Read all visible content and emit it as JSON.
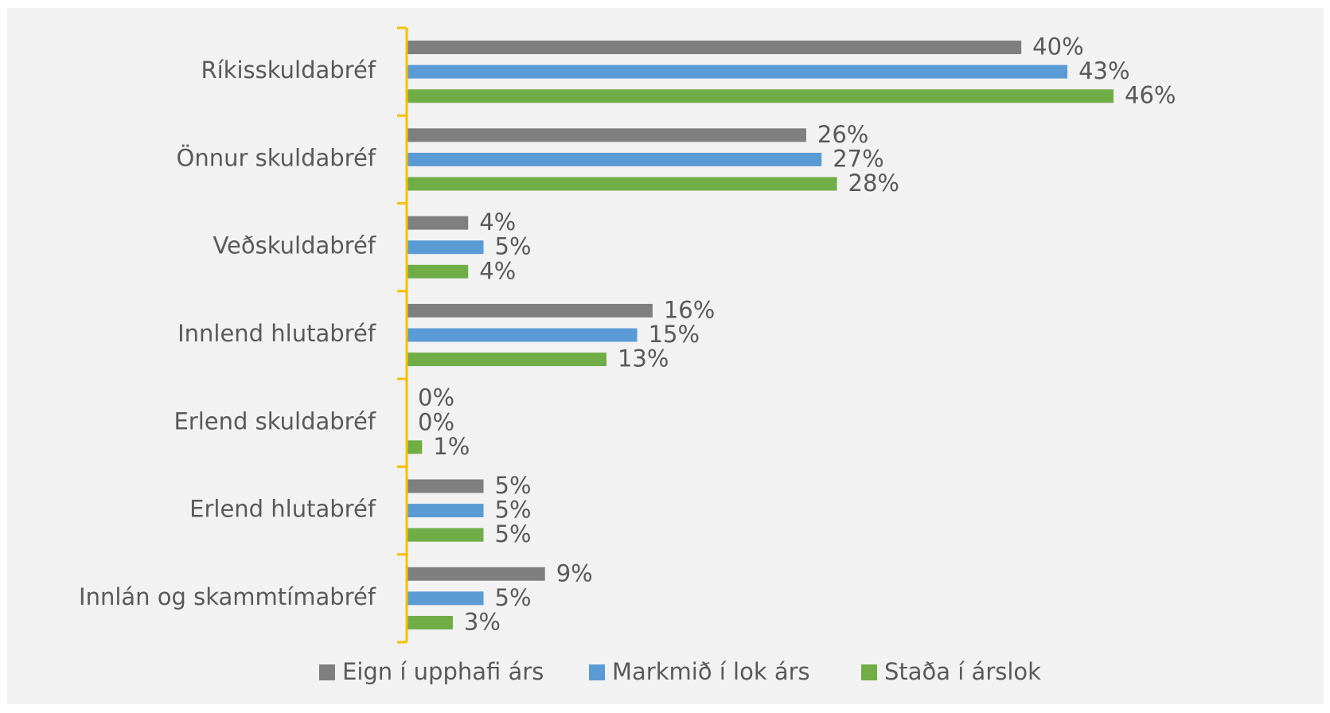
{
  "chart_data": {
    "type": "bar",
    "orientation": "horizontal",
    "categories": [
      "Ríkisskuldabréf",
      "Önnur skuldabréf",
      "Veðskuldabréf",
      "Innlend hlutabréf",
      "Erlend skuldabréf",
      "Erlend hlutabréf",
      "Innlán og skammtímabréf"
    ],
    "series": [
      {
        "name": "Eign í upphafi árs",
        "color": "#7f7f7f",
        "values": [
          40,
          26,
          4,
          16,
          0,
          5,
          9
        ],
        "value_labels": [
          "40%",
          "26%",
          "4%",
          "16%",
          "0%",
          "5%",
          "9%"
        ]
      },
      {
        "name": "Markmið í lok árs",
        "color": "#5b9bd5",
        "values": [
          43,
          27,
          5,
          15,
          0,
          5,
          5
        ],
        "value_labels": [
          "43%",
          "27%",
          "5%",
          "15%",
          "0%",
          "5%",
          "5%"
        ]
      },
      {
        "name": "Staða í árslok",
        "color": "#70ad47",
        "values": [
          46,
          28,
          4,
          13,
          1,
          5,
          3
        ],
        "value_labels": [
          "46%",
          "28%",
          "4%",
          "13%",
          "1%",
          "5%",
          "3%"
        ]
      }
    ],
    "legend": "bottom"
  }
}
